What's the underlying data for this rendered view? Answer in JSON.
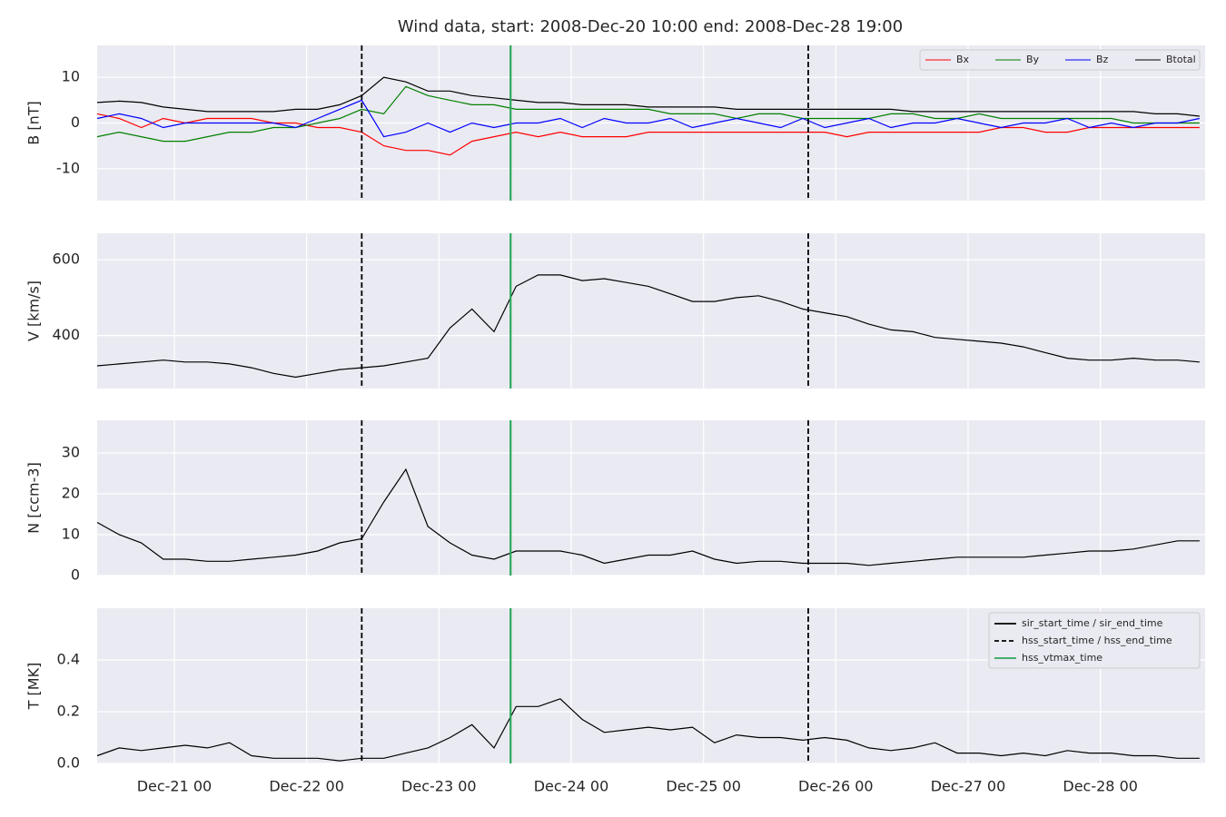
{
  "chart_data": {
    "type": "line",
    "title": "Wind data, start: 2008-Dec-20 10:00  end: 2008-Dec-28 19:00",
    "x": [
      "Dec-20 10",
      "Dec-20 14",
      "Dec-20 18",
      "Dec-20 22",
      "Dec-21 02",
      "Dec-21 06",
      "Dec-21 10",
      "Dec-21 14",
      "Dec-21 18",
      "Dec-21 22",
      "Dec-22 02",
      "Dec-22 06",
      "Dec-22 10",
      "Dec-22 14",
      "Dec-22 18",
      "Dec-22 22",
      "Dec-23 02",
      "Dec-23 06",
      "Dec-23 10",
      "Dec-23 14",
      "Dec-23 18",
      "Dec-23 22",
      "Dec-24 02",
      "Dec-24 06",
      "Dec-24 10",
      "Dec-24 14",
      "Dec-24 18",
      "Dec-24 22",
      "Dec-25 02",
      "Dec-25 06",
      "Dec-25 10",
      "Dec-25 14",
      "Dec-25 18",
      "Dec-25 22",
      "Dec-26 02",
      "Dec-26 06",
      "Dec-26 10",
      "Dec-26 14",
      "Dec-26 18",
      "Dec-26 22",
      "Dec-27 02",
      "Dec-27 06",
      "Dec-27 10",
      "Dec-27 14",
      "Dec-27 18",
      "Dec-27 22",
      "Dec-28 02",
      "Dec-28 06",
      "Dec-28 10",
      "Dec-28 14",
      "Dec-28 18"
    ],
    "xlim": [
      "Dec-20 10",
      "Dec-28 19"
    ],
    "xticks": [
      "Dec-21 00",
      "Dec-22 00",
      "Dec-23 00",
      "Dec-24 00",
      "Dec-25 00",
      "Dec-26 00",
      "Dec-27 00",
      "Dec-28 00"
    ],
    "grid": true,
    "events": [
      {
        "name": "sir_start_time / sir_end_time",
        "x": [],
        "color": "#000000",
        "style": "solid"
      },
      {
        "name": "hss_start_time / hss_end_time",
        "x": [
          "Dec-22 10",
          "Dec-25 19"
        ],
        "color": "#000000",
        "style": "dashed"
      },
      {
        "name": "hss_vtmax_time",
        "x": [
          "Dec-23 13"
        ],
        "color": "#2ca85a",
        "style": "solid"
      }
    ],
    "panels": [
      {
        "ylabel": "B [nT]",
        "ylim": [
          -17,
          17
        ],
        "yticks": [
          -10,
          0,
          10
        ],
        "legend": "upper right",
        "series": [
          {
            "name": "Bx",
            "color": "#ff0000",
            "values": [
              2,
              1,
              -1,
              1,
              0,
              1,
              1,
              1,
              0,
              0,
              -1,
              -1,
              -2,
              -5,
              -6,
              -6,
              -7,
              -4,
              -3,
              -2,
              -3,
              -2,
              -3,
              -3,
              -3,
              -2,
              -2,
              -2,
              -2,
              -2,
              -2,
              -2,
              -2,
              -2,
              -3,
              -2,
              -2,
              -2,
              -2,
              -2,
              -2,
              -1,
              -1,
              -2,
              -2,
              -1,
              -1,
              -1,
              -1,
              -1,
              -1
            ]
          },
          {
            "name": "By",
            "color": "#008000",
            "values": [
              -3,
              -2,
              -3,
              -4,
              -4,
              -3,
              -2,
              -2,
              -1,
              -1,
              0,
              1,
              3,
              2,
              8,
              6,
              5,
              4,
              4,
              3,
              3,
              3,
              3,
              3,
              3,
              3,
              2,
              2,
              2,
              1,
              2,
              2,
              1,
              1,
              1,
              1,
              2,
              2,
              1,
              1,
              2,
              1,
              1,
              1,
              1,
              1,
              1,
              0,
              0,
              0,
              0
            ]
          },
          {
            "name": "Bz",
            "color": "#0000ff",
            "values": [
              1,
              2,
              1,
              -1,
              0,
              0,
              0,
              0,
              0,
              -1,
              1,
              3,
              5,
              -3,
              -2,
              0,
              -2,
              0,
              -1,
              0,
              0,
              1,
              -1,
              1,
              0,
              0,
              1,
              -1,
              0,
              1,
              0,
              -1,
              1,
              -1,
              0,
              1,
              -1,
              0,
              0,
              1,
              0,
              -1,
              0,
              0,
              1,
              -1,
              0,
              -1,
              0,
              0,
              1
            ]
          },
          {
            "name": "Btotal",
            "color": "#000000",
            "values": [
              4.5,
              4.8,
              4.5,
              3.5,
              3,
              2.5,
              2.5,
              2.5,
              2.5,
              3,
              3,
              4,
              6,
              10,
              9,
              7,
              7,
              6,
              5.5,
              5,
              4.5,
              4.5,
              4,
              4,
              4,
              3.5,
              3.5,
              3.5,
              3.5,
              3,
              3,
              3,
              3,
              3,
              3,
              3,
              3,
              2.5,
              2.5,
              2.5,
              2.5,
              2.5,
              2.5,
              2.5,
              2.5,
              2.5,
              2.5,
              2.5,
              2,
              2,
              1.5
            ]
          }
        ]
      },
      {
        "ylabel": "V [km/s]",
        "ylim": [
          260,
          670
        ],
        "yticks": [
          400,
          600
        ],
        "series": [
          {
            "color": "#000000",
            "values": [
              320,
              325,
              330,
              335,
              330,
              330,
              325,
              315,
              300,
              290,
              300,
              310,
              315,
              320,
              330,
              340,
              420,
              470,
              410,
              530,
              560,
              560,
              545,
              550,
              540,
              530,
              510,
              490,
              490,
              500,
              505,
              490,
              470,
              460,
              450,
              430,
              415,
              410,
              395,
              390,
              385,
              380,
              370,
              355,
              340,
              335,
              335,
              340,
              335,
              335,
              330
            ]
          }
        ]
      },
      {
        "ylabel": "N [ccm-3]",
        "ylim": [
          0,
          38
        ],
        "yticks": [
          0,
          10,
          20,
          30
        ],
        "series": [
          {
            "color": "#000000",
            "values": [
              13,
              10,
              8,
              4,
              4,
              3.5,
              3.5,
              4,
              4.5,
              5,
              6,
              8,
              9,
              18,
              26,
              12,
              8,
              5,
              4,
              6,
              6,
              6,
              5,
              3,
              4,
              5,
              5,
              6,
              4,
              3,
              3.5,
              3.5,
              3,
              3,
              3,
              2.5,
              3,
              3.5,
              4,
              4.5,
              4.5,
              4.5,
              4.5,
              5,
              5.5,
              6,
              6,
              6.5,
              7.5,
              8.5,
              8.5
            ]
          }
        ]
      },
      {
        "ylabel": "T [MK]",
        "ylim": [
          0,
          0.6
        ],
        "yticks": [
          {
            "value": 0,
            "label": "0.0"
          },
          0.2,
          0.4
        ],
        "legend": "upper right",
        "series": [
          {
            "color": "#000000",
            "values": [
              0.03,
              0.06,
              0.05,
              0.06,
              0.07,
              0.06,
              0.08,
              0.03,
              0.02,
              0.02,
              0.02,
              0.01,
              0.02,
              0.02,
              0.04,
              0.06,
              0.1,
              0.15,
              0.06,
              0.22,
              0.22,
              0.25,
              0.17,
              0.12,
              0.13,
              0.14,
              0.13,
              0.14,
              0.08,
              0.11,
              0.1,
              0.1,
              0.09,
              0.1,
              0.09,
              0.06,
              0.05,
              0.06,
              0.08,
              0.04,
              0.04,
              0.03,
              0.04,
              0.03,
              0.05,
              0.04,
              0.04,
              0.03,
              0.03,
              0.02,
              0.02
            ]
          }
        ]
      }
    ]
  }
}
